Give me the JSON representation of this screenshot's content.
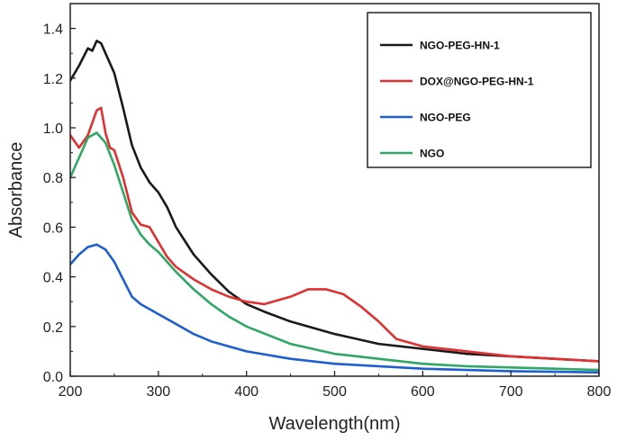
{
  "chart_data": {
    "type": "line",
    "title": "",
    "xlabel": "Wavelength(nm)",
    "ylabel": "Absorbance",
    "xlim": [
      200,
      800
    ],
    "ylim": [
      0.0,
      1.5
    ],
    "xticks": [
      "200",
      "300",
      "400",
      "500",
      "600",
      "700",
      "800"
    ],
    "yticks": [
      "0.0",
      "0.2",
      "0.4",
      "0.6",
      "0.8",
      "1.0",
      "1.2",
      "1.4"
    ],
    "legend_position": "top-right",
    "grid": false,
    "series": [
      {
        "name": "NGO-PEG-HN-1",
        "color": "#1a1a1a",
        "x": [
          200,
          210,
          220,
          225,
          230,
          235,
          240,
          250,
          260,
          270,
          280,
          290,
          300,
          310,
          320,
          340,
          360,
          380,
          400,
          420,
          450,
          500,
          550,
          600,
          650,
          700,
          750,
          800
        ],
        "y": [
          1.19,
          1.25,
          1.32,
          1.31,
          1.35,
          1.34,
          1.3,
          1.22,
          1.08,
          0.93,
          0.84,
          0.78,
          0.74,
          0.68,
          0.6,
          0.49,
          0.41,
          0.34,
          0.29,
          0.26,
          0.22,
          0.17,
          0.13,
          0.11,
          0.09,
          0.08,
          0.07,
          0.06
        ]
      },
      {
        "name": "DOX@NGO-PEG-HN-1",
        "color": "#e03030",
        "x": [
          200,
          210,
          220,
          230,
          235,
          240,
          245,
          250,
          260,
          270,
          280,
          290,
          300,
          310,
          320,
          340,
          360,
          380,
          400,
          420,
          450,
          470,
          490,
          510,
          530,
          550,
          570,
          600,
          650,
          700,
          750,
          800
        ],
        "y": [
          0.97,
          0.92,
          0.97,
          1.07,
          1.08,
          0.98,
          0.92,
          0.91,
          0.8,
          0.66,
          0.61,
          0.6,
          0.54,
          0.48,
          0.44,
          0.39,
          0.35,
          0.32,
          0.3,
          0.29,
          0.32,
          0.35,
          0.35,
          0.33,
          0.28,
          0.22,
          0.15,
          0.12,
          0.1,
          0.08,
          0.07,
          0.06
        ]
      },
      {
        "name": "NGO-PEG",
        "color": "#1e5fd0",
        "x": [
          200,
          210,
          220,
          230,
          240,
          250,
          260,
          270,
          280,
          290,
          300,
          320,
          340,
          360,
          380,
          400,
          450,
          500,
          550,
          600,
          650,
          700,
          750,
          800
        ],
        "y": [
          0.45,
          0.49,
          0.52,
          0.53,
          0.51,
          0.46,
          0.39,
          0.32,
          0.29,
          0.27,
          0.25,
          0.21,
          0.17,
          0.14,
          0.12,
          0.1,
          0.07,
          0.05,
          0.04,
          0.03,
          0.025,
          0.02,
          0.018,
          0.015
        ]
      },
      {
        "name": "NGO",
        "color": "#2ea865",
        "x": [
          200,
          210,
          220,
          230,
          240,
          250,
          260,
          270,
          280,
          290,
          300,
          320,
          340,
          360,
          380,
          400,
          450,
          500,
          550,
          600,
          650,
          700,
          750,
          800
        ],
        "y": [
          0.8,
          0.88,
          0.96,
          0.98,
          0.94,
          0.85,
          0.74,
          0.63,
          0.57,
          0.53,
          0.5,
          0.42,
          0.35,
          0.29,
          0.24,
          0.2,
          0.13,
          0.09,
          0.07,
          0.05,
          0.04,
          0.035,
          0.03,
          0.025
        ]
      }
    ]
  }
}
